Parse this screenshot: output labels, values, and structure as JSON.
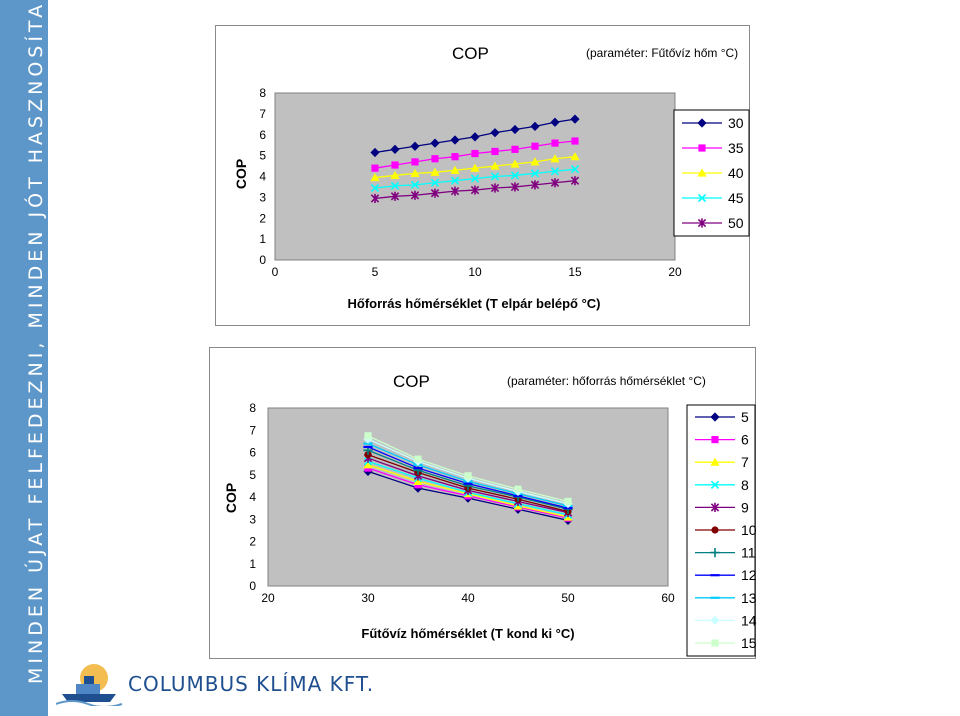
{
  "sidebar": {
    "text": "MINDEN ÚJAT FELFEDEZNI, MINDEN JÓT HASZNOSÍTANI..."
  },
  "logo": {
    "company": "COLUMBUS KLÍMA KFT."
  },
  "colors": {
    "band": "#5d97c9",
    "plot_bg": "#c0c0c0",
    "logo_text": "#1f4f8f"
  },
  "chart_data": [
    {
      "type": "line",
      "title": "COP",
      "subtitle": "(paraméter: Fűtővíz hőm °C)",
      "ylabel": "COP",
      "xlabel": "Hőforrás hőmérséklet (T elpár belépő °C)",
      "xlim": [
        0,
        20
      ],
      "ylim": [
        0,
        8
      ],
      "xticks": [
        "0",
        "5",
        "10",
        "15",
        "20"
      ],
      "yticks": [
        "0",
        "1",
        "2",
        "3",
        "4",
        "5",
        "6",
        "7",
        "8"
      ],
      "legend_position": "right",
      "grid": false,
      "x": [
        5,
        6,
        7,
        8,
        9,
        10,
        11,
        12,
        13,
        14,
        15
      ],
      "series": [
        {
          "name": "30",
          "color": "#000080",
          "marker": "diamond",
          "values": [
            5.15,
            5.3,
            5.45,
            5.6,
            5.75,
            5.9,
            6.1,
            6.25,
            6.4,
            6.6,
            6.75
          ]
        },
        {
          "name": "35",
          "color": "#ff00ff",
          "marker": "square",
          "values": [
            4.4,
            4.55,
            4.7,
            4.85,
            4.95,
            5.1,
            5.2,
            5.3,
            5.45,
            5.6,
            5.7
          ]
        },
        {
          "name": "40",
          "color": "#ffff00",
          "marker": "triangle",
          "values": [
            3.95,
            4.05,
            4.15,
            4.2,
            4.3,
            4.4,
            4.5,
            4.6,
            4.7,
            4.85,
            4.95
          ]
        },
        {
          "name": "45",
          "color": "#00ffff",
          "marker": "x",
          "values": [
            3.45,
            3.55,
            3.6,
            3.7,
            3.8,
            3.9,
            4.0,
            4.05,
            4.15,
            4.25,
            4.35
          ]
        },
        {
          "name": "50",
          "color": "#800080",
          "marker": "star",
          "values": [
            2.95,
            3.05,
            3.1,
            3.2,
            3.3,
            3.35,
            3.45,
            3.5,
            3.6,
            3.7,
            3.8
          ]
        }
      ]
    },
    {
      "type": "line",
      "title": "COP",
      "subtitle": "(paraméter: hőforrás hőmérséklet °C)",
      "ylabel": "COP",
      "xlabel": "Fűtővíz hőmérséklet (T kond ki °C)",
      "xlim": [
        20,
        60
      ],
      "ylim": [
        0,
        8
      ],
      "xticks": [
        "20",
        "30",
        "40",
        "50",
        "60"
      ],
      "yticks": [
        "0",
        "1",
        "2",
        "3",
        "4",
        "5",
        "6",
        "7",
        "8"
      ],
      "legend_position": "right",
      "grid": false,
      "x": [
        30,
        35,
        40,
        45,
        50
      ],
      "series": [
        {
          "name": "5",
          "color": "#000080",
          "marker": "diamond",
          "values": [
            5.15,
            4.4,
            3.95,
            3.45,
            2.95
          ]
        },
        {
          "name": "6",
          "color": "#ff00ff",
          "marker": "square",
          "values": [
            5.3,
            4.55,
            4.05,
            3.55,
            3.05
          ]
        },
        {
          "name": "7",
          "color": "#ffff00",
          "marker": "triangle",
          "values": [
            5.45,
            4.7,
            4.15,
            3.6,
            3.1
          ]
        },
        {
          "name": "8",
          "color": "#00ffff",
          "marker": "x",
          "values": [
            5.6,
            4.85,
            4.2,
            3.7,
            3.2
          ]
        },
        {
          "name": "9",
          "color": "#800080",
          "marker": "star",
          "values": [
            5.75,
            4.95,
            4.3,
            3.8,
            3.3
          ]
        },
        {
          "name": "10",
          "color": "#800000",
          "marker": "circle",
          "values": [
            5.9,
            5.1,
            4.4,
            3.9,
            3.35
          ]
        },
        {
          "name": "11",
          "color": "#008080",
          "marker": "plus",
          "values": [
            6.1,
            5.2,
            4.5,
            4.0,
            3.45
          ]
        },
        {
          "name": "12",
          "color": "#0000ff",
          "marker": "dash",
          "values": [
            6.25,
            5.3,
            4.6,
            4.05,
            3.5
          ]
        },
        {
          "name": "13",
          "color": "#00ccff",
          "marker": "dash",
          "values": [
            6.4,
            5.45,
            4.7,
            4.15,
            3.6
          ]
        },
        {
          "name": "14",
          "color": "#ccffff",
          "marker": "diamond",
          "values": [
            6.6,
            5.6,
            4.85,
            4.25,
            3.7
          ]
        },
        {
          "name": "15",
          "color": "#ccffcc",
          "marker": "square",
          "values": [
            6.75,
            5.7,
            4.95,
            4.35,
            3.8
          ]
        }
      ]
    }
  ]
}
